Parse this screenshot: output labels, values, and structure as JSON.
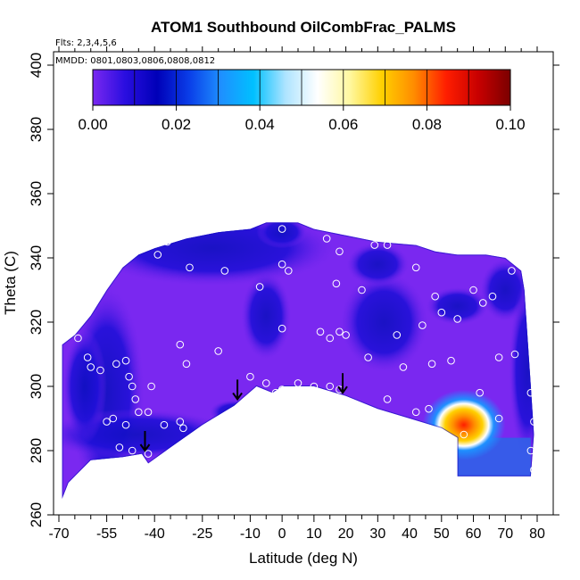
{
  "chart_data": {
    "type": "heatmap",
    "title": "ATOM1 Southbound OilCombFrac_PALMS",
    "flights_note": "Flts: 2,3,4,5,6",
    "dates_note": "MMDD: 0801,0803,0806,0808,0812",
    "xlabel": "Latitude (deg N)",
    "ylabel": "Theta (C)",
    "xlim": [
      -70,
      82
    ],
    "ylim": [
      260,
      405
    ],
    "x_ticks": [
      -70,
      -55,
      -40,
      -25,
      -10,
      0,
      10,
      20,
      30,
      40,
      50,
      60,
      70,
      80
    ],
    "x_minor_ticks": [
      -65,
      -60,
      -50,
      -45,
      -35,
      -30,
      -20,
      -15,
      -5,
      5,
      15,
      25,
      35,
      45,
      55,
      65,
      75
    ],
    "y_ticks": [
      260,
      280,
      300,
      320,
      340,
      360,
      380,
      400
    ],
    "colorbar": {
      "range": [
        0,
        0.1
      ],
      "tick_values": [
        0.0,
        0.02,
        0.04,
        0.06,
        0.08,
        0.1
      ],
      "tick_labels": [
        "0.00",
        "0.02",
        "0.04",
        "0.06",
        "0.08",
        "0.10"
      ],
      "stops": [
        "#7a28f0",
        "#2a0ee0",
        "#0000b8",
        "#0a3ee8",
        "#1e90ff",
        "#00c0ff",
        "#aee4ff",
        "#ffffff",
        "#fff8a0",
        "#ffd000",
        "#ff8c00",
        "#ff1e00",
        "#c80000",
        "#7a0000"
      ]
    },
    "boundary": [
      [
        -69,
        265
      ],
      [
        -67,
        270
      ],
      [
        -60,
        277
      ],
      [
        -50,
        278
      ],
      [
        -44,
        279
      ],
      [
        -42,
        276
      ],
      [
        -35,
        281
      ],
      [
        -25,
        288
      ],
      [
        -15,
        294
      ],
      [
        -8,
        300
      ],
      [
        -3,
        298
      ],
      [
        0,
        300
      ],
      [
        10,
        300
      ],
      [
        20,
        297
      ],
      [
        30,
        293
      ],
      [
        40,
        290
      ],
      [
        50,
        287
      ],
      [
        55,
        284
      ],
      [
        55,
        272
      ],
      [
        78,
        272
      ],
      [
        79,
        285
      ],
      [
        78,
        300
      ],
      [
        77,
        315
      ],
      [
        76,
        330
      ],
      [
        75,
        336
      ],
      [
        70,
        340
      ],
      [
        64,
        341
      ],
      [
        55,
        341
      ],
      [
        48,
        342
      ],
      [
        42,
        344
      ],
      [
        30,
        345
      ],
      [
        20,
        347
      ],
      [
        10,
        349
      ],
      [
        5,
        351
      ],
      [
        -5,
        351
      ],
      [
        -10,
        349
      ],
      [
        -20,
        348
      ],
      [
        -30,
        346
      ],
      [
        -40,
        343
      ],
      [
        -45,
        341
      ],
      [
        -50,
        337
      ],
      [
        -55,
        330
      ],
      [
        -60,
        322
      ],
      [
        -65,
        316
      ],
      [
        -69,
        313
      ]
    ],
    "hotspot": {
      "x": 57,
      "y": 288,
      "peak": 0.09
    },
    "observation_points": [
      [
        -64,
        315
      ],
      [
        -60,
        306
      ],
      [
        -61,
        309
      ],
      [
        -57,
        305
      ],
      [
        -52,
        307
      ],
      [
        -49,
        308
      ],
      [
        -48,
        303
      ],
      [
        -47,
        300
      ],
      [
        -46,
        296
      ],
      [
        -45,
        292
      ],
      [
        -55,
        289
      ],
      [
        -53,
        290
      ],
      [
        -49,
        288
      ],
      [
        -42,
        292
      ],
      [
        -41,
        300
      ],
      [
        -32,
        289
      ],
      [
        -31,
        287
      ],
      [
        -37,
        288
      ],
      [
        -51,
        281
      ],
      [
        -47,
        280
      ],
      [
        -42,
        279
      ],
      [
        -20,
        311
      ],
      [
        -30,
        307
      ],
      [
        -32,
        313
      ],
      [
        -29,
        337
      ],
      [
        -39,
        341
      ],
      [
        -36,
        345
      ],
      [
        -44,
        346
      ],
      [
        -18,
        336
      ],
      [
        -7,
        331
      ],
      [
        0,
        349
      ],
      [
        0,
        318
      ],
      [
        0,
        338
      ],
      [
        2,
        336
      ],
      [
        -10,
        303
      ],
      [
        -5,
        301
      ],
      [
        -2,
        298
      ],
      [
        0,
        299
      ],
      [
        5,
        301
      ],
      [
        10,
        300
      ],
      [
        15,
        300
      ],
      [
        18,
        299
      ],
      [
        12,
        317
      ],
      [
        15,
        315
      ],
      [
        18,
        317
      ],
      [
        20,
        316
      ],
      [
        14,
        346
      ],
      [
        18,
        342
      ],
      [
        17,
        332
      ],
      [
        25,
        330
      ],
      [
        27,
        309
      ],
      [
        29,
        344
      ],
      [
        33,
        344
      ],
      [
        36,
        316
      ],
      [
        38,
        306
      ],
      [
        42,
        337
      ],
      [
        44,
        319
      ],
      [
        47,
        307
      ],
      [
        48,
        328
      ],
      [
        50,
        323
      ],
      [
        53,
        308
      ],
      [
        55,
        321
      ],
      [
        60,
        330
      ],
      [
        63,
        326
      ],
      [
        66,
        328
      ],
      [
        68,
        309
      ],
      [
        72,
        336
      ],
      [
        73,
        310
      ],
      [
        78,
        298
      ],
      [
        79,
        289
      ],
      [
        78,
        280
      ],
      [
        79,
        274
      ],
      [
        68,
        290
      ],
      [
        62,
        298
      ],
      [
        57,
        285
      ],
      [
        46,
        293
      ],
      [
        42,
        292
      ],
      [
        33,
        296
      ]
    ],
    "arrows": [
      [
        -43,
        280
      ],
      [
        -14,
        296
      ],
      [
        19,
        298
      ]
    ]
  }
}
